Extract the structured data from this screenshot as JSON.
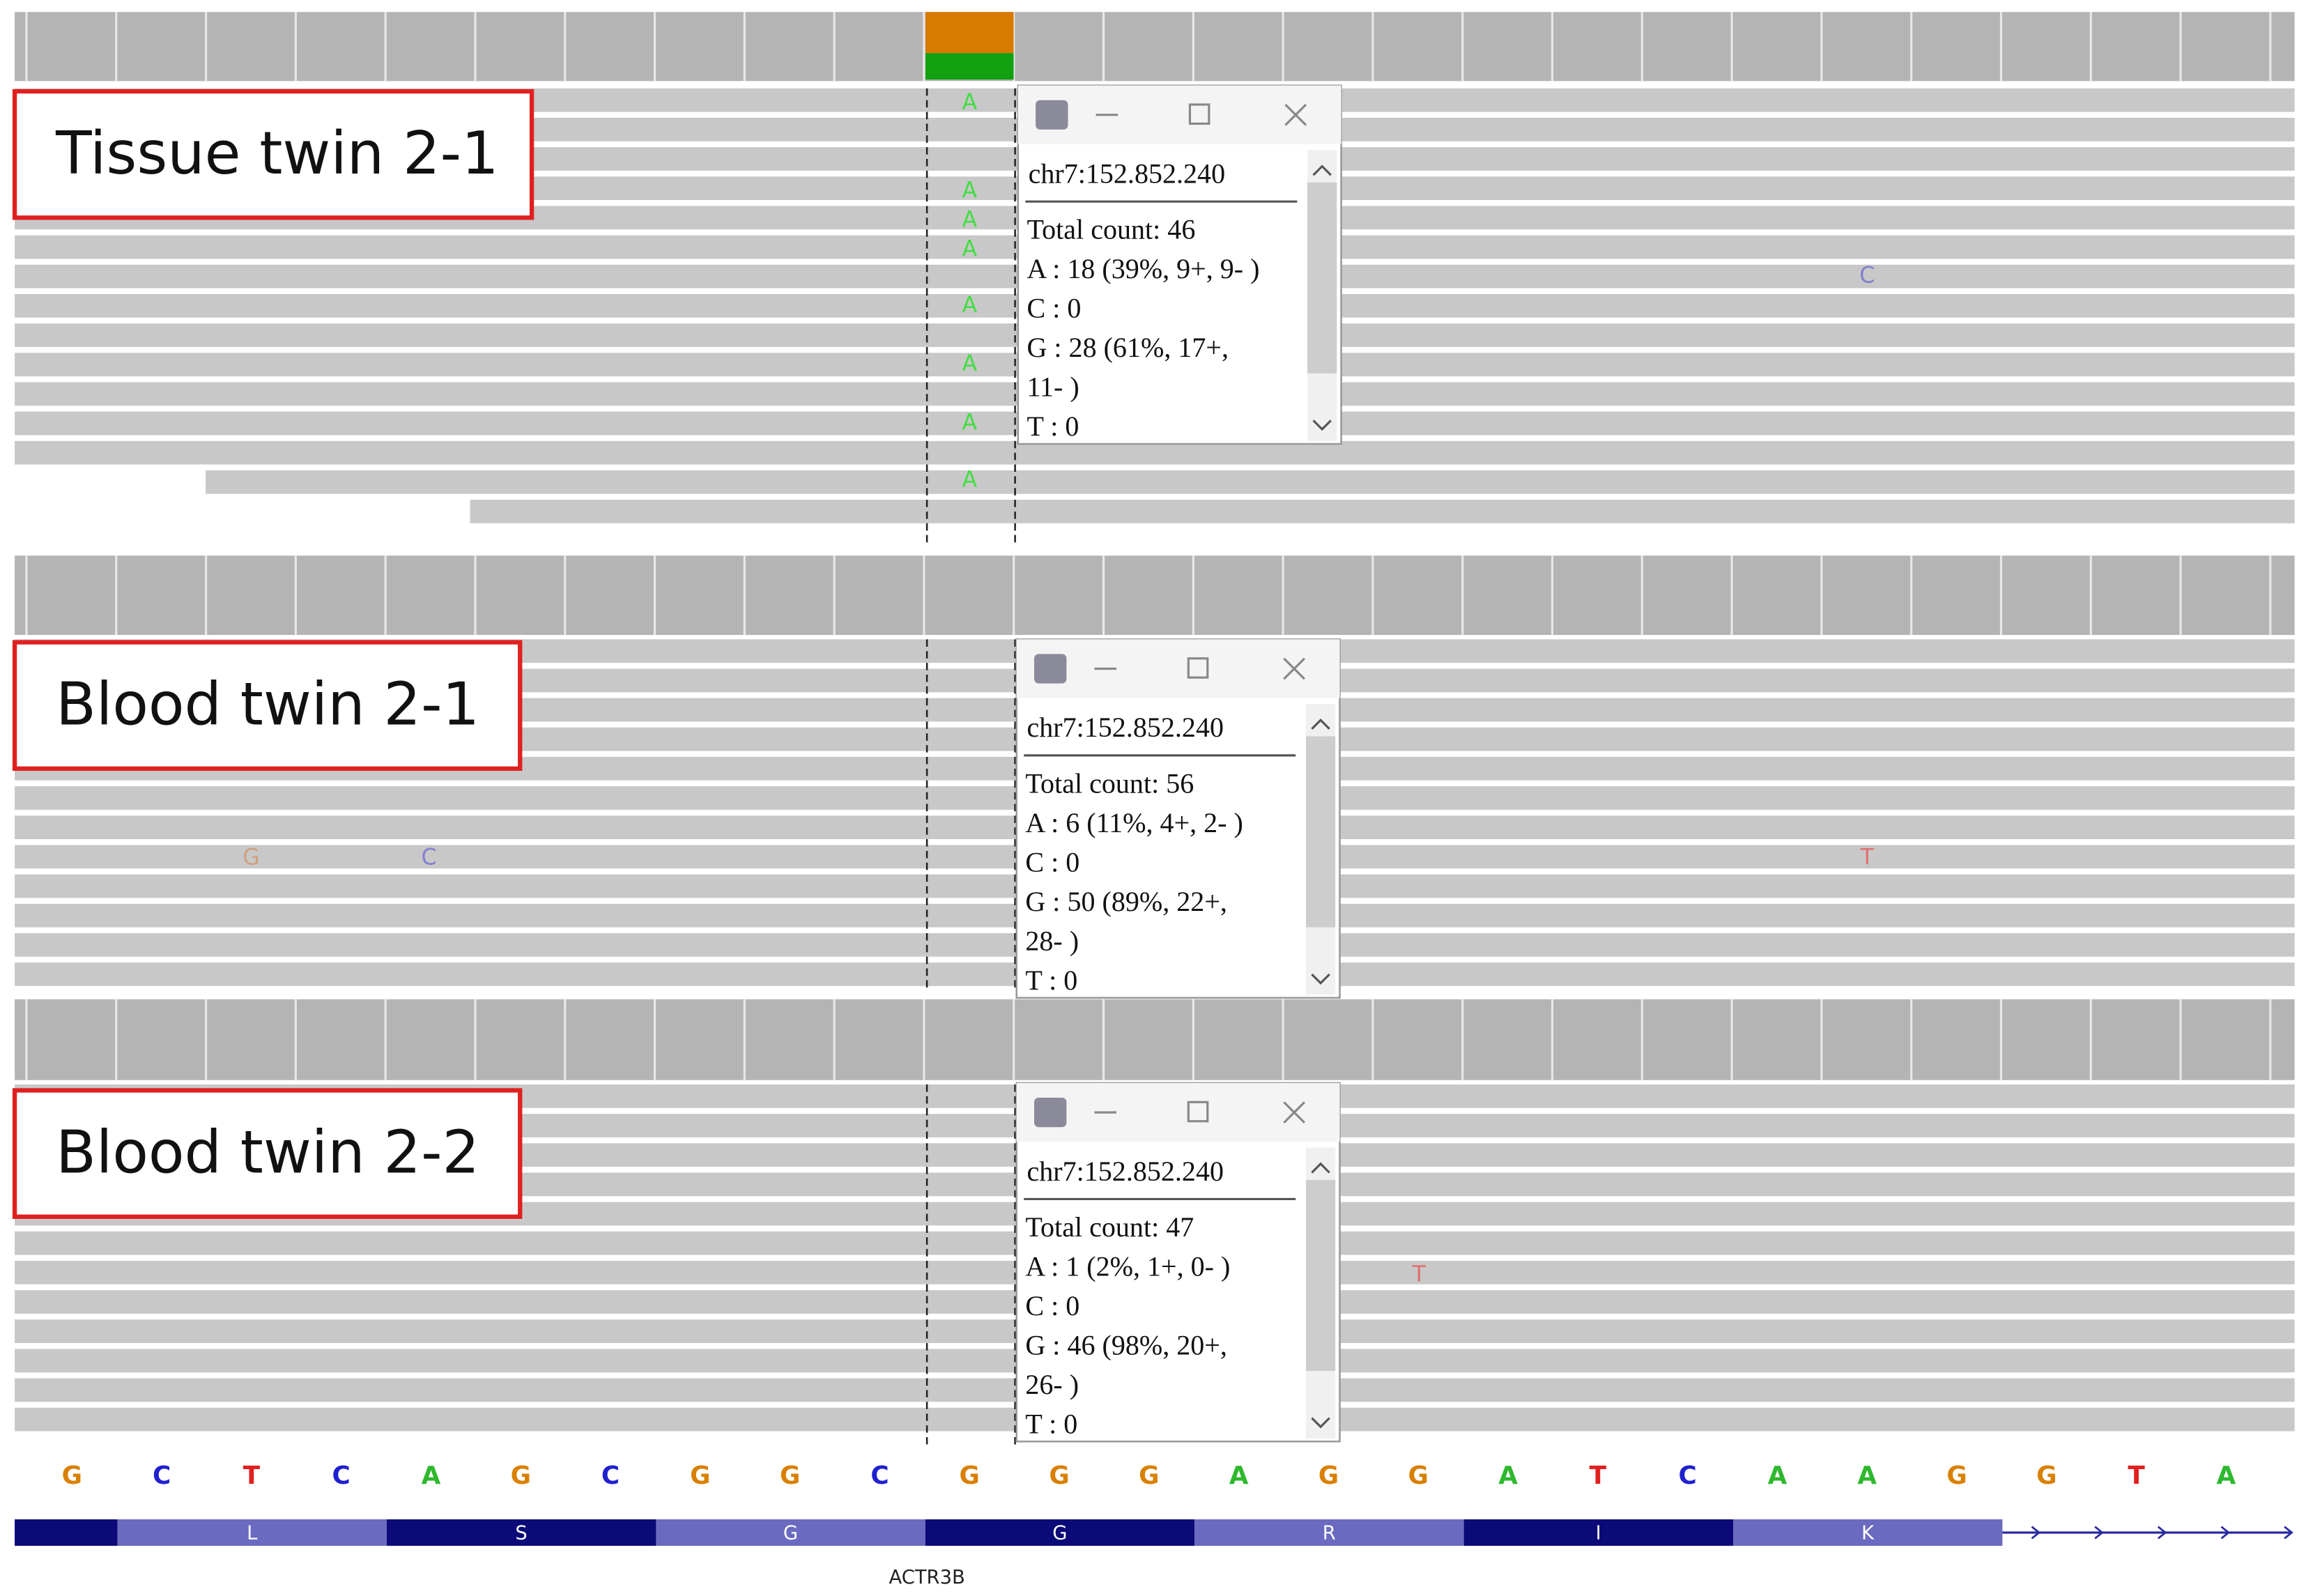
{
  "panels": [
    {
      "label": "Tissue twin 2-1",
      "popup": {
        "position": "chr7:152.852.240",
        "lines": [
          "Total count: 46",
          "A : 18 (39%, 9+, 9- )",
          "C : 0",
          "G : 28 (61%, 17+,",
          "11- )",
          "T : 0"
        ]
      },
      "read_bases": [
        "A",
        "A",
        "A",
        "A",
        "A",
        "A",
        "A",
        "A",
        "C"
      ]
    },
    {
      "label": "Blood twin 2-1",
      "popup": {
        "position": "chr7:152.852.240",
        "lines": [
          "Total count: 56",
          "A : 6 (11%, 4+, 2- )",
          "C : 0",
          "G : 50 (89%, 22+,",
          "28- )",
          "T : 0"
        ]
      },
      "read_bases": [
        "G",
        "C",
        "T"
      ]
    },
    {
      "label": "Blood twin 2-2",
      "popup": {
        "position": "chr7:152.852.240",
        "lines": [
          "Total count: 47",
          "A : 1 (2%, 1+, 0- )",
          "C : 0",
          "G : 46 (98%, 20+,",
          "26- )",
          "T : 0"
        ]
      },
      "read_bases": [
        "T"
      ]
    }
  ],
  "sequence": [
    "G",
    "C",
    "T",
    "C",
    "A",
    "G",
    "C",
    "G",
    "G",
    "C",
    "G",
    "G",
    "G",
    "A",
    "G",
    "G",
    "A",
    "T",
    "C",
    "A",
    "A",
    "G",
    "G",
    "T",
    "A"
  ],
  "amino_acids": [
    "L",
    "S",
    "G",
    "G",
    "R",
    "I",
    "K"
  ],
  "gene": "ACTR3B"
}
